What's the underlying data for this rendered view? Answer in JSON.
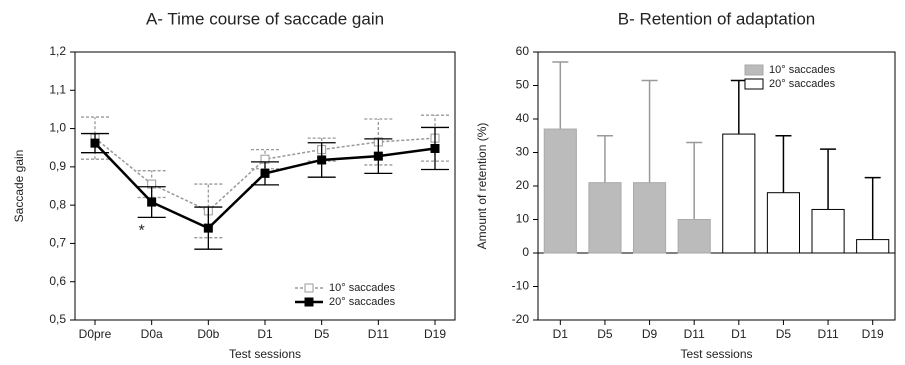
{
  "chart_data": [
    {
      "type": "line",
      "title": "A- Time course of saccade gain",
      "ylabel": "Saccade gain",
      "xlabel": "Test sessions",
      "categories": [
        "D0pre",
        "D0a",
        "D0b",
        "D1",
        "D5",
        "D11",
        "D19"
      ],
      "series": [
        {
          "name": "10° saccades",
          "color": "#999999",
          "values": [
            0.975,
            0.855,
            0.785,
            0.92,
            0.945,
            0.965,
            0.975
          ],
          "errors": [
            0.055,
            0.035,
            0.07,
            0.025,
            0.03,
            0.06,
            0.06
          ]
        },
        {
          "name": "20° saccades",
          "color": "#000000",
          "values": [
            0.962,
            0.808,
            0.74,
            0.883,
            0.918,
            0.928,
            0.948
          ],
          "errors": [
            0.025,
            0.04,
            0.055,
            0.03,
            0.045,
            0.045,
            0.055
          ]
        }
      ],
      "annotation": "*",
      "ylim": [
        0.5,
        1.2
      ],
      "yticks": [
        {
          "value": 0.5,
          "label": "0,5"
        },
        {
          "value": 0.6,
          "label": "0,6"
        },
        {
          "value": 0.7,
          "label": "0,7"
        },
        {
          "value": 0.8,
          "label": "0,8"
        },
        {
          "value": 0.9,
          "label": "0,9"
        },
        {
          "value": 1.0,
          "label": "1,0"
        },
        {
          "value": 1.1,
          "label": "1,1"
        },
        {
          "value": 1.2,
          "label": "1,2"
        }
      ],
      "legend": "lower right"
    },
    {
      "type": "bar",
      "title": "B- Retention of adaptation",
      "ylabel": "Amount of retention (%)",
      "xlabel": "Test sessions",
      "categories": [
        "D1",
        "D5",
        "D9",
        "D11",
        "D1",
        "D5",
        "D11",
        "D19"
      ],
      "series": [
        {
          "name": "10° saccades",
          "color": "#bbbbbb",
          "values": [
            37,
            21,
            21,
            10,
            null,
            null,
            null,
            null
          ],
          "errors": [
            20,
            14,
            30.5,
            23,
            null,
            null,
            null,
            null
          ]
        },
        {
          "name": "20° saccades",
          "color": "#ffffff",
          "values": [
            null,
            null,
            null,
            null,
            35.5,
            18,
            13,
            4
          ],
          "errors": [
            null,
            null,
            null,
            null,
            16,
            17,
            18,
            18.5
          ]
        }
      ],
      "ylim": [
        -20,
        60
      ],
      "yticks": [
        -20,
        -10,
        0,
        10,
        20,
        30,
        40,
        50,
        60
      ],
      "legend": "upper right"
    }
  ]
}
